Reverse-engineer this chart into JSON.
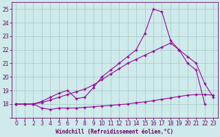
{
  "xlabel": "Windchill (Refroidissement éolien,°C)",
  "background_color": "#ceeaea",
  "grid_color": "#aacccc",
  "line_color": "#990099",
  "x_values": [
    0,
    1,
    2,
    3,
    4,
    5,
    6,
    7,
    8,
    9,
    10,
    11,
    12,
    13,
    14,
    15,
    16,
    17,
    18,
    19,
    20,
    21,
    22,
    23
  ],
  "line1": [
    18.0,
    18.0,
    18.0,
    17.7,
    17.6,
    17.7,
    17.7,
    17.7,
    17.75,
    17.8,
    17.85,
    17.9,
    17.95,
    18.0,
    18.1,
    18.15,
    18.25,
    18.35,
    18.45,
    18.55,
    18.65,
    18.7,
    18.7,
    18.65
  ],
  "line2": [
    18.0,
    18.0,
    18.0,
    18.1,
    18.3,
    18.5,
    18.7,
    18.9,
    19.1,
    19.4,
    19.8,
    20.2,
    20.6,
    21.0,
    21.3,
    21.6,
    21.9,
    22.2,
    22.5,
    22.0,
    21.5,
    21.0,
    19.5,
    18.5
  ],
  "line3": [
    18.0,
    18.0,
    18.0,
    18.2,
    18.5,
    18.8,
    19.0,
    18.4,
    18.5,
    19.2,
    20.0,
    20.5,
    21.0,
    21.5,
    22.0,
    23.2,
    25.0,
    24.8,
    22.7,
    22.0,
    21.0,
    20.5,
    18.0,
    null
  ],
  "ylim_min": 17.0,
  "ylim_max": 25.5,
  "xlim_min": 0,
  "xlim_max": 23,
  "yticks": [
    17,
    18,
    19,
    20,
    21,
    22,
    23,
    24,
    25
  ],
  "ytick_labels": [
    "",
    "18",
    "19",
    "20",
    "21",
    "22",
    "23",
    "24",
    "25"
  ],
  "xticks": [
    0,
    1,
    2,
    3,
    4,
    5,
    6,
    7,
    8,
    9,
    10,
    11,
    12,
    13,
    14,
    15,
    16,
    17,
    18,
    19,
    20,
    21,
    22,
    23
  ]
}
